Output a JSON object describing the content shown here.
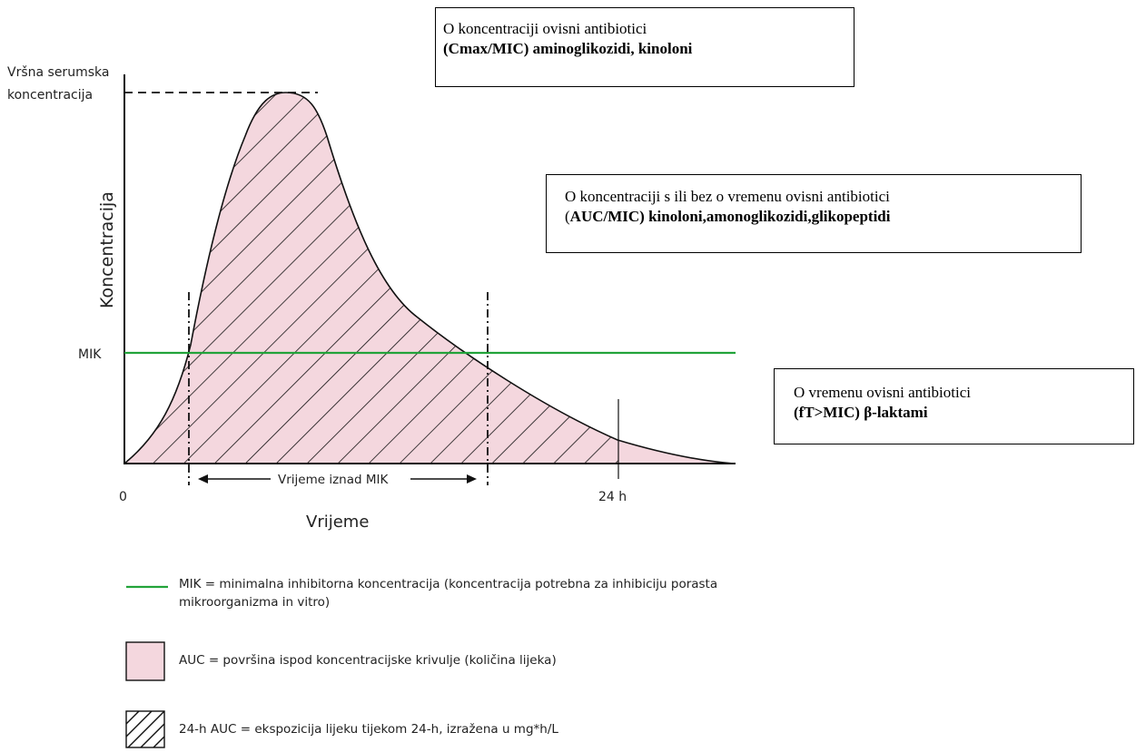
{
  "axis": {
    "peak_label_line1": "Vršna serumska",
    "peak_label_line2": "koncentracija",
    "y_label": "Koncentracija",
    "mik_label": "MIK",
    "x_zero": "0",
    "x_24h": "24 h",
    "x_label": "Vrijeme",
    "time_above_label": "Vrijeme iznad MIK"
  },
  "boxes": {
    "concentration": {
      "line1": "O koncentraciji ovisni antibiotici",
      "line2": "(Cmax/MIC) aminoglikozidi, kinoloni"
    },
    "auc": {
      "line1": "O koncentraciji s ili bez o vremenu ovisni antibiotici",
      "line2_prefix": "(",
      "line2_bold": "AUC/MIC) kinoloni,amonoglikozidi,glikopeptidi"
    },
    "time": {
      "line1": "O vremenu ovisni antibiotici",
      "line2": "(fT>MIC) β-laktami"
    }
  },
  "legend": {
    "mik": "MIK = minimalna inhibitorna koncentracija (koncentracija potrebna za inhibiciju porasta mikroorganizma in vitro)",
    "auc": "AUC = površina ispod koncentracijske krivulje (količina lijeka)",
    "auc24": "24-h AUC = ekspozicija lijeku tijekom 24-h, izražena u mg*h/L"
  },
  "colors": {
    "mik_line": "#22a33a",
    "auc_fill": "#f4d7de",
    "hatch": "#111111",
    "axis": "#111111"
  }
}
